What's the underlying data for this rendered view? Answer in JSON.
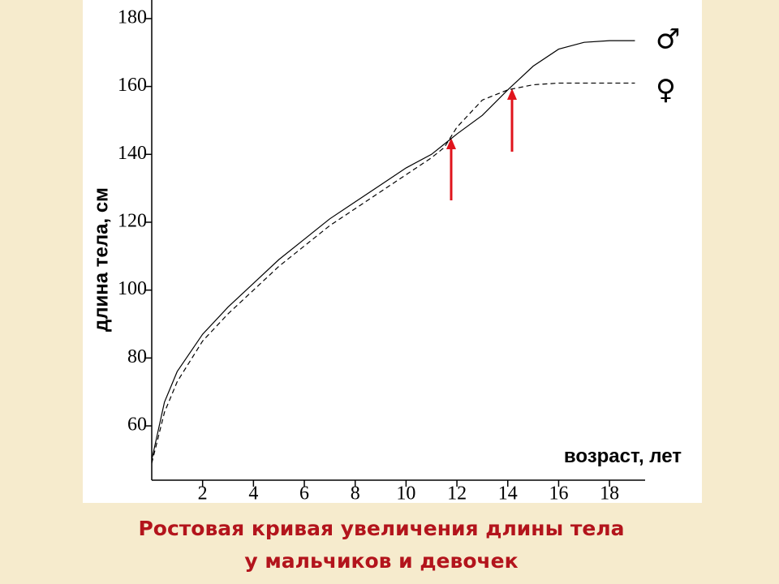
{
  "chart_data": {
    "type": "line",
    "title_lines": [
      "Ростовая кривая увеличения длины тела",
      "у мальчиков и девочек"
    ],
    "ylabel": "длина тела, см",
    "xlabel": "возраст, лет",
    "x": [
      0,
      0.5,
      1,
      2,
      3,
      4,
      5,
      6,
      7,
      8,
      9,
      10,
      11,
      11.5,
      12,
      13,
      14,
      15,
      16,
      17,
      18,
      19
    ],
    "series": [
      {
        "name": "♂",
        "color": "#000000",
        "dash": false,
        "values": [
          50,
          67,
          76,
          87,
          95,
          102,
          109,
          115,
          121,
          126,
          131,
          136,
          140,
          143,
          146,
          151.5,
          159,
          166,
          171,
          173,
          173.5,
          173.5
        ]
      },
      {
        "name": "♀",
        "color": "#000000",
        "dash": true,
        "values": [
          49,
          64,
          73,
          85,
          93,
          100,
          107,
          113,
          119,
          124,
          129,
          134,
          139,
          142,
          148,
          156,
          159,
          160.5,
          161,
          161,
          161,
          161
        ]
      }
    ],
    "xlim": [
      0,
      19.4
    ],
    "xticks": [
      2,
      4,
      6,
      8,
      10,
      12,
      14,
      16,
      18
    ],
    "ylim": [
      44,
      185
    ],
    "yticks": [
      60,
      80,
      100,
      120,
      140,
      160,
      180
    ]
  }
}
